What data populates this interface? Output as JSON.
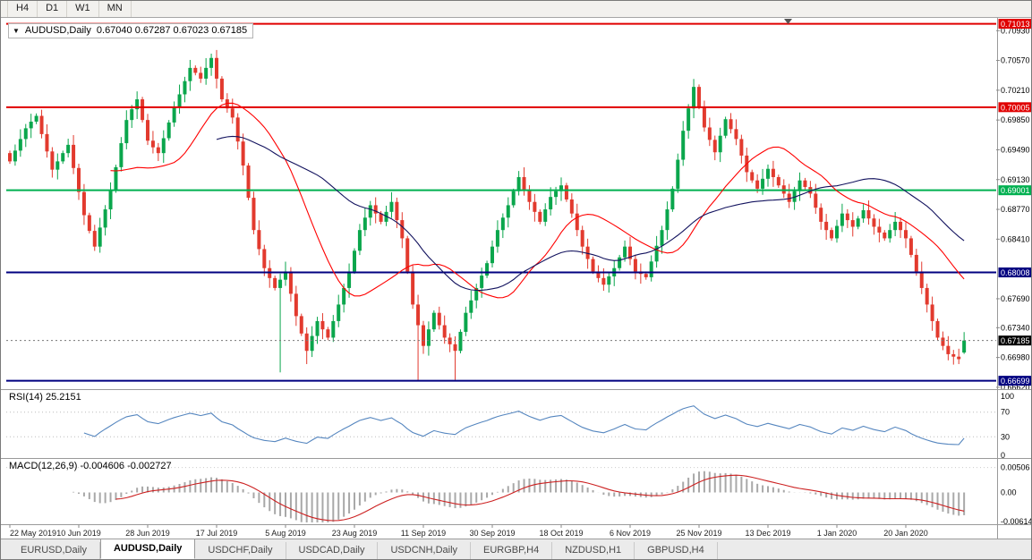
{
  "toolbar": {
    "timeframes": [
      "H4",
      "D1",
      "W1",
      "MN"
    ]
  },
  "chart": {
    "title": "AUDUSD,Daily",
    "ohlc_text": "0.67040 0.67287 0.67023 0.67185"
  },
  "price_axis": {
    "ticks": [
      "0.70930",
      "0.70570",
      "0.70210",
      "0.69850",
      "0.69490",
      "0.69130",
      "0.68770",
      "0.68410",
      "0.67690",
      "0.67340",
      "0.66980",
      "0.66620"
    ],
    "levels": [
      {
        "value": "0.71013",
        "color": "#e00000",
        "style": "solid",
        "width": 2
      },
      {
        "value": "0.70005",
        "color": "#e00000",
        "style": "solid",
        "width": 2
      },
      {
        "value": "0.69001",
        "color": "#00b050",
        "style": "solid",
        "width": 2
      },
      {
        "value": "0.68008",
        "color": "#000080",
        "style": "solid",
        "width": 2
      },
      {
        "value": "0.67185",
        "color": "#000000",
        "style": "dotted",
        "width": 1
      },
      {
        "value": "0.66699",
        "color": "#000080",
        "style": "solid",
        "width": 2
      }
    ]
  },
  "rsi": {
    "label": "RSI(14) 25.2151",
    "period": 14,
    "current": "25.2151",
    "axis": [
      "100",
      "70",
      "30",
      "0"
    ],
    "color": "#5586bf"
  },
  "macd": {
    "label": "MACD(12,26,9) -0.004606 -0.002727",
    "fast": 12,
    "slow": 26,
    "signal": 9,
    "current_macd": "-0.004606",
    "current_signal": "-0.002727",
    "axis": [
      "0.00506",
      "0.00",
      "-0.00614"
    ],
    "hist_color": "#a8a8a8",
    "signal_color": "#cc2020"
  },
  "time_axis": {
    "dates": [
      "22 May 2019",
      "10 Jun 2019",
      "28 Jun 2019",
      "17 Jul 2019",
      "5 Aug 2019",
      "23 Aug 2019",
      "11 Sep 2019",
      "30 Sep 2019",
      "18 Oct 2019",
      "6 Nov 2019",
      "25 Nov 2019",
      "13 Dec 2019",
      "1 Jan 2020",
      "20 Jan 2020"
    ]
  },
  "tabs": {
    "items": [
      {
        "label": "EURUSD,Daily",
        "active": false
      },
      {
        "label": "AUDUSD,Daily",
        "active": true
      },
      {
        "label": "USDCHF,Daily",
        "active": false
      },
      {
        "label": "USDCAD,Daily",
        "active": false
      },
      {
        "label": "USDCNH,Daily",
        "active": false
      },
      {
        "label": "EURGBP,H4",
        "active": false
      },
      {
        "label": "NZDUSD,H1",
        "active": false
      },
      {
        "label": "GBPUSD,H4",
        "active": false
      }
    ]
  },
  "colors": {
    "bull": "#0aa64c",
    "bear": "#e23a2e",
    "ma_fast": "#ff0000",
    "ma_slow": "#12125e"
  },
  "chart_data": {
    "type": "candlestick",
    "symbol": "AUDUSD",
    "timeframe": "Daily",
    "current_ohlc": {
      "open": 0.6704,
      "high": 0.67287,
      "low": 0.67023,
      "close": 0.67185
    },
    "price_range": [
      0.6663,
      0.7103
    ],
    "horizontal_levels": [
      0.71013,
      0.70005,
      0.69001,
      0.68008,
      0.66699
    ],
    "rsi_current": 25.2151,
    "macd_current": -0.004606,
    "macd_signal_current": -0.002727,
    "ma_fast_period": 20,
    "ma_slow_period": 40,
    "closes": [
      0.6935,
      0.6948,
      0.6962,
      0.6975,
      0.6983,
      0.699,
      0.6968,
      0.6947,
      0.6925,
      0.6935,
      0.6945,
      0.6955,
      0.6927,
      0.6898,
      0.687,
      0.6851,
      0.6832,
      0.6855,
      0.6877,
      0.69,
      0.6928,
      0.6957,
      0.6985,
      0.6998,
      0.701,
      0.6985,
      0.696,
      0.6952,
      0.6945,
      0.6963,
      0.6982,
      0.7,
      0.7016,
      0.7032,
      0.7048,
      0.7042,
      0.7035,
      0.7048,
      0.706,
      0.7035,
      0.701,
      0.6999,
      0.6988,
      0.6959,
      0.693,
      0.6891,
      0.6852,
      0.6829,
      0.6806,
      0.6794,
      0.6782,
      0.6792,
      0.6802,
      0.6775,
      0.6748,
      0.6727,
      0.6706,
      0.6724,
      0.6742,
      0.6732,
      0.6722,
      0.6742,
      0.6762,
      0.6782,
      0.6802,
      0.6827,
      0.6852,
      0.6867,
      0.6882,
      0.6872,
      0.6862,
      0.6874,
      0.6886,
      0.6864,
      0.6842,
      0.6802,
      0.6762,
      0.6737,
      0.6712,
      0.6732,
      0.6752,
      0.6737,
      0.6722,
      0.6714,
      0.6706,
      0.6729,
      0.6752,
      0.6767,
      0.6782,
      0.6797,
      0.6812,
      0.6832,
      0.6852,
      0.6867,
      0.6882,
      0.6899,
      0.6916,
      0.6901,
      0.6886,
      0.6874,
      0.6862,
      0.6877,
      0.6892,
      0.6899,
      0.6906,
      0.6889,
      0.6872,
      0.6852,
      0.6832,
      0.6817,
      0.6802,
      0.6794,
      0.6786,
      0.6796,
      0.6806,
      0.6819,
      0.6832,
      0.6817,
      0.6802,
      0.6799,
      0.6795,
      0.6814,
      0.6833,
      0.6852,
      0.6877,
      0.6902,
      0.6937,
      0.6972,
      0.6999,
      0.7025,
      0.7001,
      0.6976,
      0.6961,
      0.6946,
      0.6966,
      0.6986,
      0.6974,
      0.6962,
      0.6942,
      0.6922,
      0.6912,
      0.6902,
      0.6914,
      0.6926,
      0.6916,
      0.6906,
      0.6896,
      0.6886,
      0.6899,
      0.6912,
      0.6904,
      0.6896,
      0.6879,
      0.6862,
      0.6852,
      0.6842,
      0.6857,
      0.6872,
      0.6864,
      0.6856,
      0.6866,
      0.6876,
      0.6866,
      0.6856,
      0.6849,
      0.6842,
      0.6852,
      0.6862,
      0.6852,
      0.6842,
      0.6822,
      0.6802,
      0.6782,
      0.6762,
      0.6742,
      0.6722,
      0.6712,
      0.6702,
      0.6699,
      0.6696,
      0.67185
    ],
    "wick_lows": {
      "51": 0.668,
      "56": 0.669,
      "77": 0.667,
      "84": 0.6671,
      "179": 0.669
    }
  }
}
